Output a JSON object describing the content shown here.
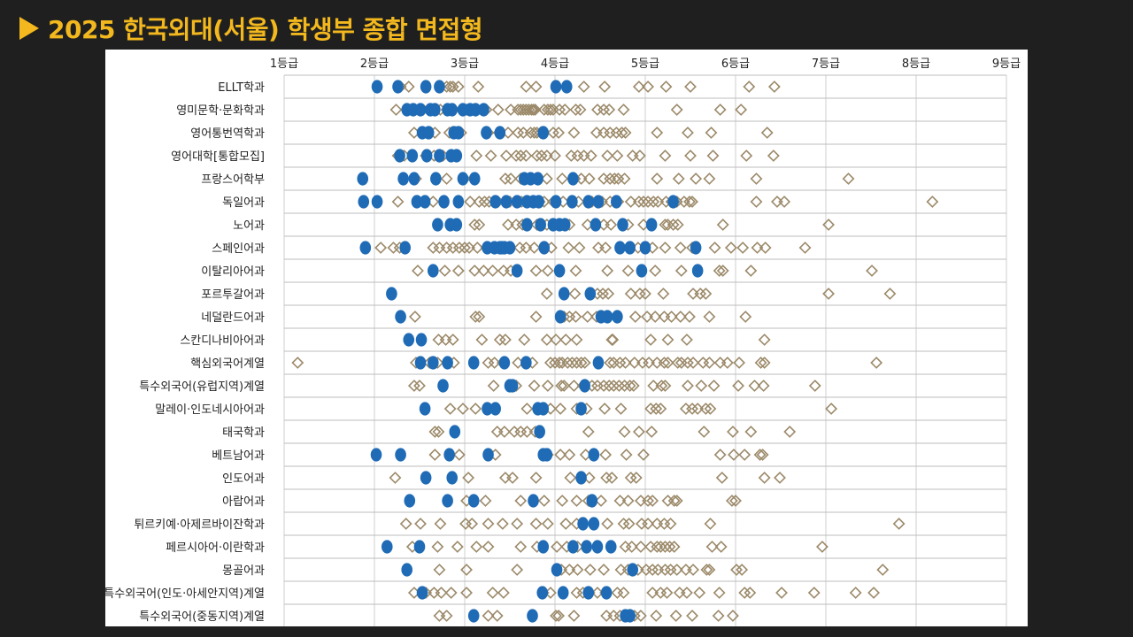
{
  "header": {
    "title": "2025 한국외대(서울) 학생부 종합 면접형"
  },
  "colors": {
    "accent": "#f3b81e",
    "background": "#1f1f1f",
    "pass_marker": "#1f6bb5",
    "other_marker": "#9c8a6a"
  },
  "chart_data": {
    "type": "scatter",
    "title": "",
    "xlabel": "",
    "ylabel": "",
    "x_ticks": [
      "1등급",
      "2등급",
      "3등급",
      "4등급",
      "5등급",
      "6등급",
      "7등급",
      "8등급",
      "9등급"
    ],
    "xlim": [
      1,
      9
    ],
    "grid": true,
    "categories": [
      "ELLT학과",
      "영미문학·문화학과",
      "영어통번역학과",
      "영어대학[통합모집]",
      "프랑스어학부",
      "독일어과",
      "노어과",
      "스페인어과",
      "이탈리아어과",
      "포르투갈어과",
      "네덜란드어과",
      "스칸디나비아어과",
      "핵심외국어계열",
      "특수외국어(유럽지역)계열",
      "말레이·인도네시아어과",
      "태국학과",
      "베트남어과",
      "인도어과",
      "아랍어과",
      "튀르키예·아제르바이잔학과",
      "페르시아어·이란학과",
      "몽골어과",
      "특수외국어(인도·아세안지역)계열",
      "특수외국어(중동지역)계열"
    ],
    "series": [
      {
        "marker": "filled-circle",
        "color": "#1f6bb5",
        "points": [
          [
            2.03,
            2.26,
            2.57,
            2.72,
            4.01,
            4.13
          ],
          [
            2.36,
            2.43,
            2.51,
            2.62,
            2.67,
            2.81,
            2.86,
            2.98,
            3.06,
            3.12,
            3.21
          ],
          [
            2.53,
            2.6,
            2.88,
            2.93,
            3.24,
            3.39,
            3.87
          ],
          [
            2.28,
            2.42,
            2.58,
            2.72,
            2.85,
            2.91
          ],
          [
            1.87,
            2.32,
            2.44,
            2.68,
            2.98,
            3.11,
            3.66,
            3.73,
            3.81,
            4.2
          ],
          [
            1.88,
            2.03,
            2.47,
            2.56,
            2.77,
            2.93,
            3.34,
            3.46,
            3.58,
            3.69,
            3.76,
            3.82,
            4.01,
            4.19,
            4.37,
            4.48,
            4.68,
            5.31
          ],
          [
            2.7,
            2.84,
            2.91,
            3.69,
            3.84,
            3.98,
            4.05,
            4.11,
            4.45,
            4.75,
            5.07
          ],
          [
            1.9,
            2.34,
            3.25,
            3.33,
            3.39,
            3.41,
            3.44,
            3.5,
            3.88,
            4.72,
            4.83,
            5.0,
            5.56
          ],
          [
            2.65,
            3.58,
            4.05,
            4.96,
            5.58
          ],
          [
            2.19,
            4.1,
            4.39
          ],
          [
            2.29,
            4.06,
            4.51,
            4.58,
            4.69
          ],
          [
            2.38,
            2.52
          ],
          [
            2.51,
            2.65,
            2.81,
            3.1,
            3.44,
            3.68,
            4.48
          ],
          [
            2.76,
            3.5,
            3.53,
            4.33
          ],
          [
            2.56,
            3.25,
            3.34,
            3.81,
            3.87,
            4.29
          ],
          [
            2.89,
            3.83
          ],
          [
            2.02,
            2.29,
            2.83,
            3.26,
            3.87,
            3.91,
            4.43
          ],
          [
            2.57,
            2.86,
            4.29
          ],
          [
            2.39,
            2.81,
            3.1,
            3.76,
            4.41
          ],
          [
            4.31,
            4.43
          ],
          [
            2.14,
            2.5,
            3.87,
            4.2,
            4.35,
            4.47,
            4.62
          ],
          [
            2.36,
            4.02,
            4.86
          ],
          [
            2.53,
            3.86,
            4.09,
            4.37,
            4.57
          ],
          [
            3.1,
            3.75,
            4.78,
            4.83
          ]
        ]
      },
      {
        "marker": "hollow-diamond",
        "color": "#9c8a6a",
        "points": [
          [
            2.29,
            2.38,
            2.8,
            2.84,
            2.87,
            2.93,
            3.15,
            3.68,
            3.79,
            4.32,
            4.55,
            4.93,
            5.03,
            5.23,
            5.5,
            6.15,
            6.43
          ],
          [
            2.24,
            2.43,
            2.49,
            2.54,
            2.61,
            2.73,
            2.8,
            2.88,
            3.02,
            3.24,
            3.37,
            3.51,
            3.59,
            3.62,
            3.65,
            3.68,
            3.71,
            3.74,
            3.76,
            3.78,
            3.88,
            3.92,
            3.95,
            3.98,
            4.05,
            4.11,
            4.23,
            4.28,
            4.47,
            4.54,
            4.6,
            4.76,
            5.35,
            5.83,
            6.06
          ],
          [
            2.44,
            2.67,
            2.83,
            2.96,
            3.26,
            3.38,
            3.48,
            3.59,
            3.65,
            3.73,
            3.77,
            3.8,
            3.84,
            3.98,
            4.04,
            4.21,
            4.46,
            4.54,
            4.61,
            4.68,
            4.74,
            4.78,
            5.13,
            5.47,
            5.73,
            6.35
          ],
          [
            2.26,
            2.33,
            2.57,
            2.66,
            2.76,
            3.13,
            3.29,
            3.46,
            3.57,
            3.62,
            3.68,
            3.8,
            3.85,
            3.91,
            4.0,
            4.18,
            4.25,
            4.32,
            4.4,
            4.58,
            4.69,
            4.86,
            4.94,
            5.22,
            5.5,
            5.75,
            6.12,
            6.42
          ],
          [
            2.46,
            2.8,
            3.0,
            3.1,
            3.45,
            3.51,
            3.62,
            3.74,
            3.91,
            4.08,
            4.22,
            4.29,
            4.38,
            4.54,
            4.61,
            4.66,
            4.7,
            4.77,
            5.13,
            5.37,
            5.56,
            5.71,
            6.23,
            7.25
          ],
          [
            2.26,
            2.65,
            3.06,
            3.16,
            3.22,
            3.27,
            3.37,
            3.5,
            3.59,
            3.63,
            3.7,
            3.83,
            3.88,
            3.98,
            4.01,
            4.09,
            4.26,
            4.41,
            4.52,
            4.61,
            4.7,
            4.84,
            4.93,
            4.98,
            5.03,
            5.09,
            5.14,
            5.23,
            5.29,
            5.35,
            5.43,
            5.49,
            5.52,
            6.23,
            6.46,
            6.54,
            8.18
          ],
          [
            2.89,
            3.11,
            3.16,
            3.48,
            3.57,
            3.64,
            3.8,
            3.91,
            4.07,
            4.16,
            4.36,
            4.54,
            4.62,
            4.81,
            4.98,
            5.22,
            5.25,
            5.31,
            5.36,
            5.86,
            7.03
          ],
          [
            2.07,
            2.21,
            2.28,
            2.65,
            2.72,
            2.8,
            2.87,
            2.94,
            3.0,
            3.05,
            3.14,
            3.24,
            3.61,
            3.68,
            3.77,
            3.96,
            4.15,
            4.27,
            4.48,
            4.56,
            4.92,
            5.08,
            5.22,
            5.39,
            5.52,
            5.77,
            5.95,
            6.08,
            6.24,
            6.33,
            6.77
          ],
          [
            2.48,
            2.78,
            2.93,
            3.11,
            3.21,
            3.31,
            3.43,
            3.51,
            3.79,
            3.92,
            4.23,
            4.58,
            4.81,
            5.11,
            5.4,
            5.82,
            5.86,
            6.17,
            7.51
          ],
          [
            3.91,
            4.22,
            4.47,
            4.53,
            4.59,
            4.84,
            4.94,
            5.0,
            5.2,
            5.53,
            5.61,
            5.67,
            7.03,
            7.71
          ],
          [
            2.45,
            3.12,
            3.16,
            3.79,
            4.1,
            4.16,
            4.23,
            4.36,
            4.46,
            4.53,
            4.89,
            5.02,
            5.11,
            5.21,
            5.29,
            5.39,
            5.49,
            5.71,
            6.11
          ],
          [
            2.71,
            2.79,
            2.87,
            3.19,
            3.39,
            3.45,
            3.66,
            3.91,
            4.01,
            4.12,
            4.24,
            4.63,
            4.64,
            5.06,
            5.25,
            5.46,
            6.32
          ],
          [
            1.15,
            2.46,
            2.61,
            2.7,
            2.88,
            3.26,
            3.33,
            3.42,
            3.59,
            3.75,
            3.95,
            4.0,
            4.05,
            4.08,
            4.14,
            4.19,
            4.24,
            4.29,
            4.33,
            4.61,
            4.65,
            4.72,
            4.78,
            4.88,
            4.97,
            5.04,
            5.13,
            5.21,
            5.25,
            5.36,
            5.4,
            5.47,
            5.53,
            5.64,
            5.71,
            5.83,
            5.91,
            6.04,
            6.28,
            6.32,
            7.56
          ],
          [
            2.44,
            2.5,
            3.32,
            3.57,
            3.77,
            3.92,
            4.07,
            4.1,
            4.21,
            4.31,
            4.41,
            4.47,
            4.54,
            4.6,
            4.65,
            4.71,
            4.77,
            4.83,
            4.87,
            5.09,
            5.18,
            5.22,
            5.47,
            5.62,
            5.76,
            6.03,
            6.21,
            6.31,
            6.88
          ],
          [
            2.84,
            2.98,
            3.12,
            3.69,
            3.95,
            4.06,
            4.24,
            4.35,
            4.55,
            4.73,
            5.06,
            5.12,
            5.17,
            5.45,
            5.52,
            5.58,
            5.67,
            5.72,
            7.06
          ],
          [
            2.67,
            2.71,
            3.36,
            3.44,
            3.55,
            3.62,
            3.69,
            3.78,
            4.37,
            4.77,
            4.93,
            5.07,
            5.65,
            5.97,
            6.17,
            6.6
          ],
          [
            2.67,
            2.94,
            3.34,
            3.92,
            4.06,
            4.16,
            4.34,
            4.56,
            4.79,
            4.98,
            5.83,
            5.98,
            6.1,
            6.27,
            6.3
          ],
          [
            2.23,
            3.04,
            3.45,
            3.53,
            3.79,
            4.17,
            4.38,
            4.57,
            4.63,
            4.84,
            4.9,
            5.85,
            6.32,
            6.49
          ],
          [
            3.02,
            3.23,
            3.62,
            3.88,
            4.08,
            4.24,
            4.37,
            4.51,
            4.72,
            4.81,
            4.95,
            5.03,
            5.08,
            5.25,
            5.32,
            5.35,
            5.96,
            6.0
          ],
          [
            2.35,
            2.51,
            2.73,
            3.01,
            3.08,
            3.26,
            3.42,
            3.58,
            3.79,
            3.92,
            4.12,
            4.24,
            4.58,
            4.76,
            4.82,
            4.96,
            5.03,
            5.13,
            5.21,
            5.28,
            5.72,
            7.81
          ],
          [
            2.42,
            2.7,
            2.92,
            3.13,
            3.26,
            3.62,
            3.8,
            4.02,
            4.13,
            4.25,
            4.78,
            4.85,
            4.95,
            5.06,
            5.13,
            5.17,
            5.22,
            5.27,
            5.32,
            5.74,
            5.84,
            6.96
          ],
          [
            2.72,
            3.02,
            3.58,
            4.07,
            4.16,
            4.25,
            4.39,
            4.54,
            4.73,
            4.81,
            4.92,
            5.01,
            5.08,
            5.14,
            5.22,
            5.28,
            5.35,
            5.45,
            5.53,
            5.68,
            5.71,
            6.01,
            6.07,
            7.63
          ],
          [
            2.44,
            2.57,
            2.66,
            2.74,
            2.85,
            3.02,
            3.31,
            3.43,
            3.87,
            3.95,
            4.24,
            4.31,
            4.38,
            4.47,
            4.56,
            4.69,
            4.76,
            5.08,
            5.17,
            5.24,
            5.38,
            5.46,
            5.6,
            5.82,
            6.1,
            6.16,
            6.51,
            6.87,
            7.33,
            7.53
          ],
          [
            2.72,
            2.8,
            3.26,
            3.36,
            4.01,
            4.04,
            4.21,
            4.57,
            4.65,
            4.72,
            4.88,
            4.95,
            5.12,
            5.34,
            5.52,
            5.81,
            5.97
          ]
        ]
      }
    ]
  }
}
